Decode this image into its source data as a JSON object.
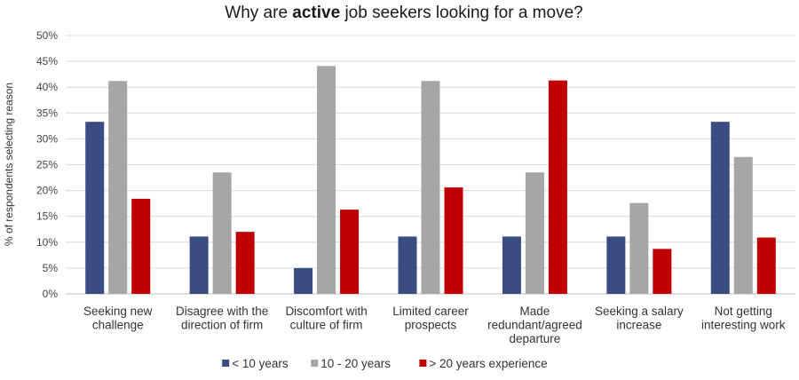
{
  "chart_data": {
    "type": "bar",
    "title": "Why are active job seekers looking for a move?",
    "title_parts": {
      "pre": "Why are ",
      "bold": "active",
      "post": " job seekers looking for a move?"
    },
    "ylabel": "% of respondents selecting reason",
    "xlabel": "",
    "ylim": [
      0,
      50
    ],
    "y_ticks": [
      0,
      5,
      10,
      15,
      20,
      25,
      30,
      35,
      40,
      45,
      50
    ],
    "y_tick_labels": [
      "0%",
      "5%",
      "10%",
      "15%",
      "20%",
      "25%",
      "30%",
      "35%",
      "40%",
      "45%",
      "50%"
    ],
    "grid": true,
    "legend_position": "bottom",
    "categories": [
      [
        "Seeking new",
        "challenge"
      ],
      [
        "Disagree with the",
        "direction of firm"
      ],
      [
        "Discomfort with",
        "culture of firm"
      ],
      [
        "Limited career",
        "prospects"
      ],
      [
        "Made",
        "redundant/agreed",
        "departure"
      ],
      [
        "Seeking a salary",
        "increase"
      ],
      [
        "Not getting",
        "interesting work"
      ]
    ],
    "series": [
      {
        "name": "< 10 years",
        "color": "#3a4c82",
        "values": [
          33.3,
          11.1,
          5.0,
          11.1,
          11.1,
          11.1,
          33.3
        ]
      },
      {
        "name": "10 - 20 years",
        "color": "#a6a6a6",
        "values": [
          41.2,
          23.5,
          44.1,
          41.2,
          23.5,
          17.6,
          26.5
        ]
      },
      {
        "name": "> 20 years experience",
        "color": "#c00000",
        "values": [
          18.4,
          12.0,
          16.3,
          20.6,
          41.3,
          8.7,
          10.9
        ]
      }
    ]
  }
}
